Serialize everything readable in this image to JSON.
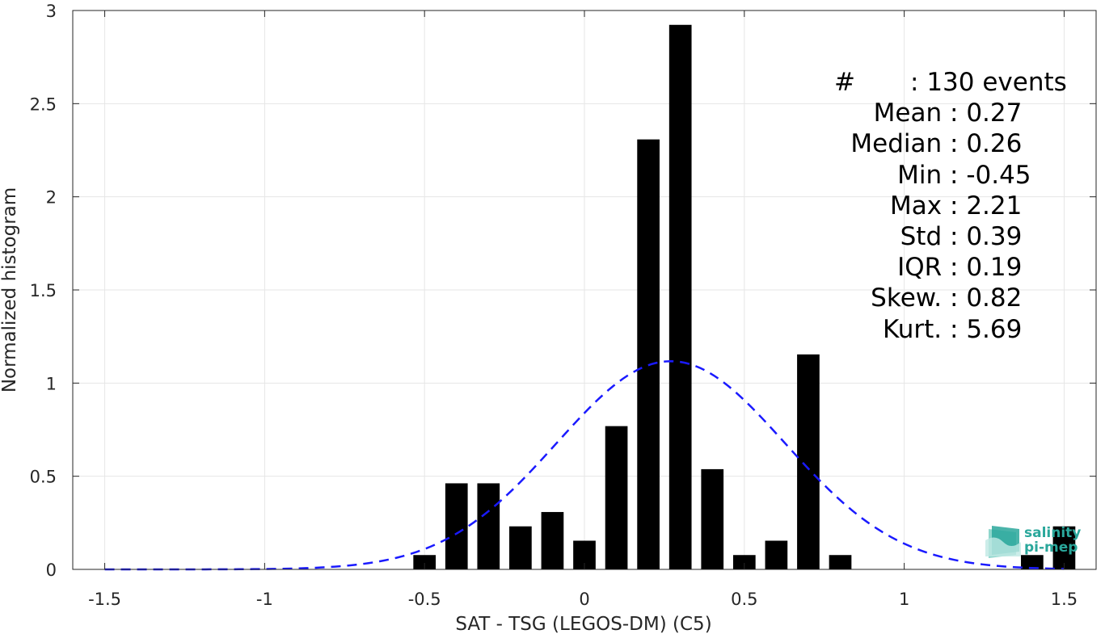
{
  "chart_data": {
    "type": "bar",
    "xlabel": "SAT - TSG (LEGOS-DM) (C5)",
    "ylabel": "Normalized histogram",
    "xlim": [
      -1.6,
      1.6
    ],
    "ylim": [
      0,
      3
    ],
    "xticks": [
      -1.5,
      -1,
      -0.5,
      0,
      0.5,
      1,
      1.5
    ],
    "xtick_labels": [
      "-1.5",
      "-1",
      "-0.5",
      "0",
      "0.5",
      "1",
      "1.5"
    ],
    "yticks": [
      0,
      0.5,
      1,
      1.5,
      2,
      2.5,
      3
    ],
    "ytick_labels": [
      "0",
      "0.5",
      "1",
      "1.5",
      "2",
      "2.5",
      "3"
    ],
    "grid": true,
    "bar_color": "#000000",
    "bar_width": 0.07,
    "bars": [
      {
        "x": -0.5,
        "value": 0.077
      },
      {
        "x": -0.4,
        "value": 0.462
      },
      {
        "x": -0.3,
        "value": 0.462
      },
      {
        "x": -0.2,
        "value": 0.231
      },
      {
        "x": -0.1,
        "value": 0.308
      },
      {
        "x": 0.0,
        "value": 0.154
      },
      {
        "x": 0.1,
        "value": 0.769
      },
      {
        "x": 0.2,
        "value": 2.308
      },
      {
        "x": 0.3,
        "value": 2.923
      },
      {
        "x": 0.4,
        "value": 0.538
      },
      {
        "x": 0.5,
        "value": 0.077
      },
      {
        "x": 0.6,
        "value": 0.154
      },
      {
        "x": 0.7,
        "value": 1.154
      },
      {
        "x": 0.8,
        "value": 0.077
      },
      {
        "x": 1.4,
        "value": 0.077
      },
      {
        "x": 1.5,
        "value": 0.231
      }
    ],
    "fit_curve": {
      "type": "gaussian",
      "mean": 0.27,
      "std": 0.357,
      "x_range": [
        -1.5,
        1.5
      ],
      "color": "#1a1aff",
      "style": "dashed"
    }
  },
  "stats": [
    {
      "label": "#  ",
      "value": "130 events"
    },
    {
      "label": "Mean ",
      "value": "0.27"
    },
    {
      "label": "Median ",
      "value": "0.26"
    },
    {
      "label": "Min ",
      "value": "-0.45"
    },
    {
      "label": "Max ",
      "value": "2.21"
    },
    {
      "label": "Std ",
      "value": "0.39"
    },
    {
      "label": "IQR ",
      "value": "0.19"
    },
    {
      "label": "Skew. ",
      "value": "0.82"
    },
    {
      "label": "Kurt. ",
      "value": "5.69"
    }
  ],
  "stat_separator": ": ",
  "logo": {
    "line1": "salinity",
    "line2": "pi-mep",
    "color": "#2aa79b"
  }
}
